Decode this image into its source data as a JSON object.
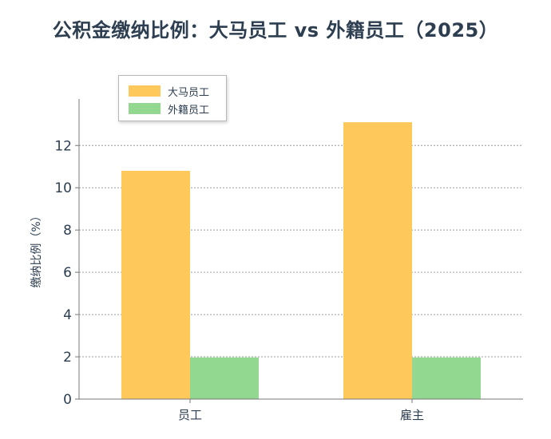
{
  "chart_data": {
    "type": "bar",
    "title": "公积金缴纳比例：大马员工 vs 外籍员工（2025）",
    "xlabel": "",
    "ylabel": "缴纳比例（%）",
    "categories": [
      "员工",
      "雇主"
    ],
    "series": [
      {
        "name": "大马员工",
        "values": [
          10.8,
          13.1
        ],
        "color": "#FFC85A"
      },
      {
        "name": "外籍员工",
        "values": [
          1.97,
          1.97
        ],
        "color": "#92D891"
      }
    ],
    "ylim": [
      0,
      14.2
    ],
    "yticks": [
      "0",
      "2",
      "4",
      "6",
      "8",
      "10",
      "12"
    ],
    "grid": true,
    "legend_position": "top-left"
  }
}
